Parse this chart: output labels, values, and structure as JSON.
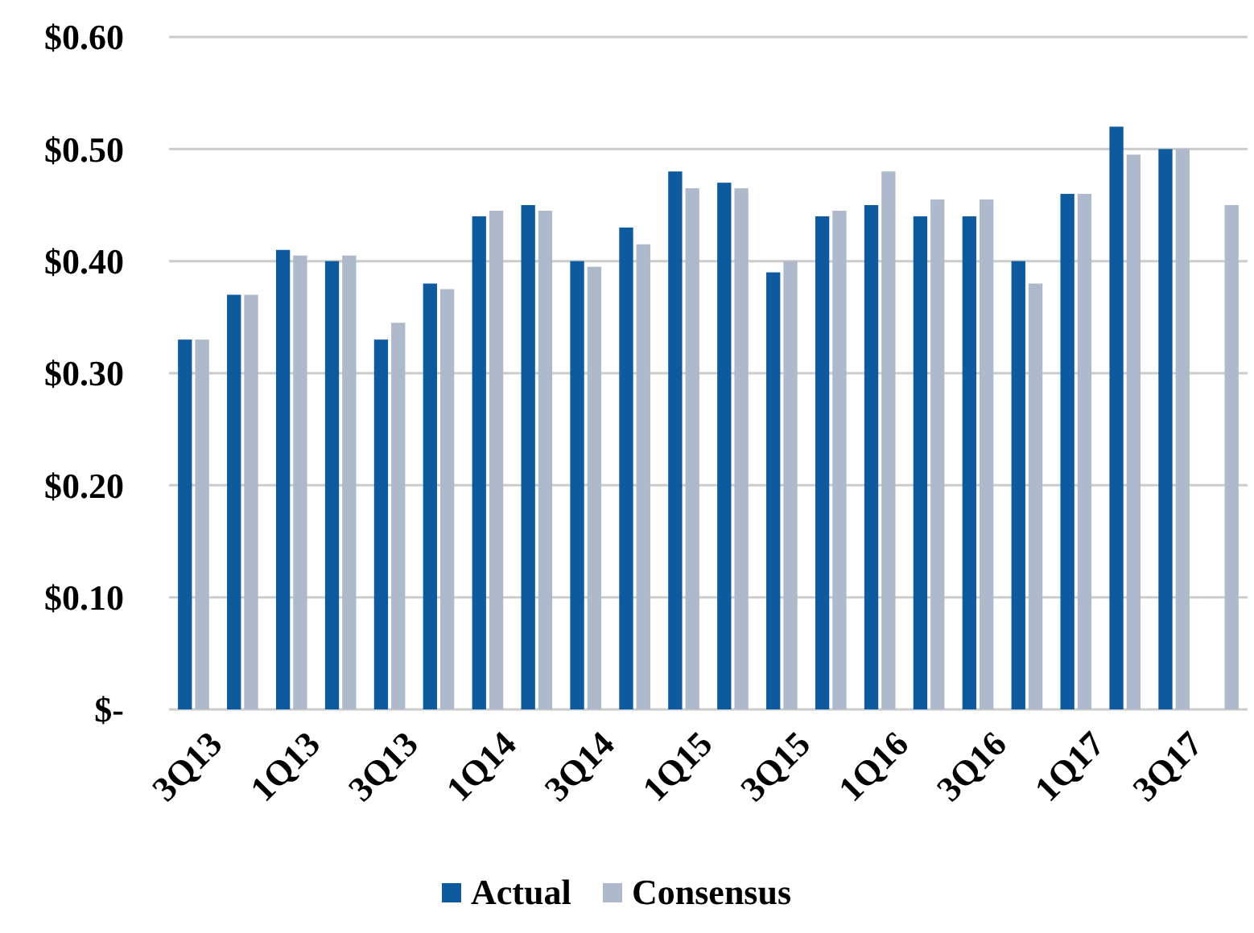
{
  "chart_data": {
    "type": "bar",
    "categories": [
      "3Q13",
      null,
      "1Q13",
      null,
      "3Q13",
      null,
      "1Q14",
      null,
      "3Q14",
      null,
      "1Q15",
      null,
      "3Q15",
      null,
      "1Q16",
      null,
      "3Q16",
      null,
      "1Q17",
      null,
      "3Q17",
      null
    ],
    "series": [
      {
        "name": "Actual",
        "color": "#0d5a9e",
        "values": [
          0.33,
          0.37,
          0.41,
          0.4,
          0.33,
          0.38,
          0.44,
          0.45,
          0.4,
          0.43,
          0.48,
          0.47,
          0.39,
          0.44,
          0.45,
          0.44,
          0.44,
          0.4,
          0.46,
          0.52,
          0.5,
          null
        ]
      },
      {
        "name": "Consensus",
        "color": "#aeb9cb",
        "values": [
          0.33,
          0.37,
          0.405,
          0.405,
          0.345,
          0.375,
          0.445,
          0.445,
          0.395,
          0.415,
          0.465,
          0.465,
          0.4,
          0.445,
          0.48,
          0.455,
          0.455,
          0.38,
          0.46,
          0.495,
          0.5,
          0.45
        ]
      }
    ],
    "ylim": [
      0,
      0.6
    ],
    "yticks": [
      {
        "value": 0,
        "label": "$-"
      },
      {
        "value": 0.1,
        "label": "$0.10"
      },
      {
        "value": 0.2,
        "label": "$0.20"
      },
      {
        "value": 0.3,
        "label": "$0.30"
      },
      {
        "value": 0.4,
        "label": "$0.40"
      },
      {
        "value": 0.5,
        "label": "$0.50"
      },
      {
        "value": 0.6,
        "label": "$0.60"
      }
    ],
    "grid": "y",
    "legend": "bottom"
  }
}
